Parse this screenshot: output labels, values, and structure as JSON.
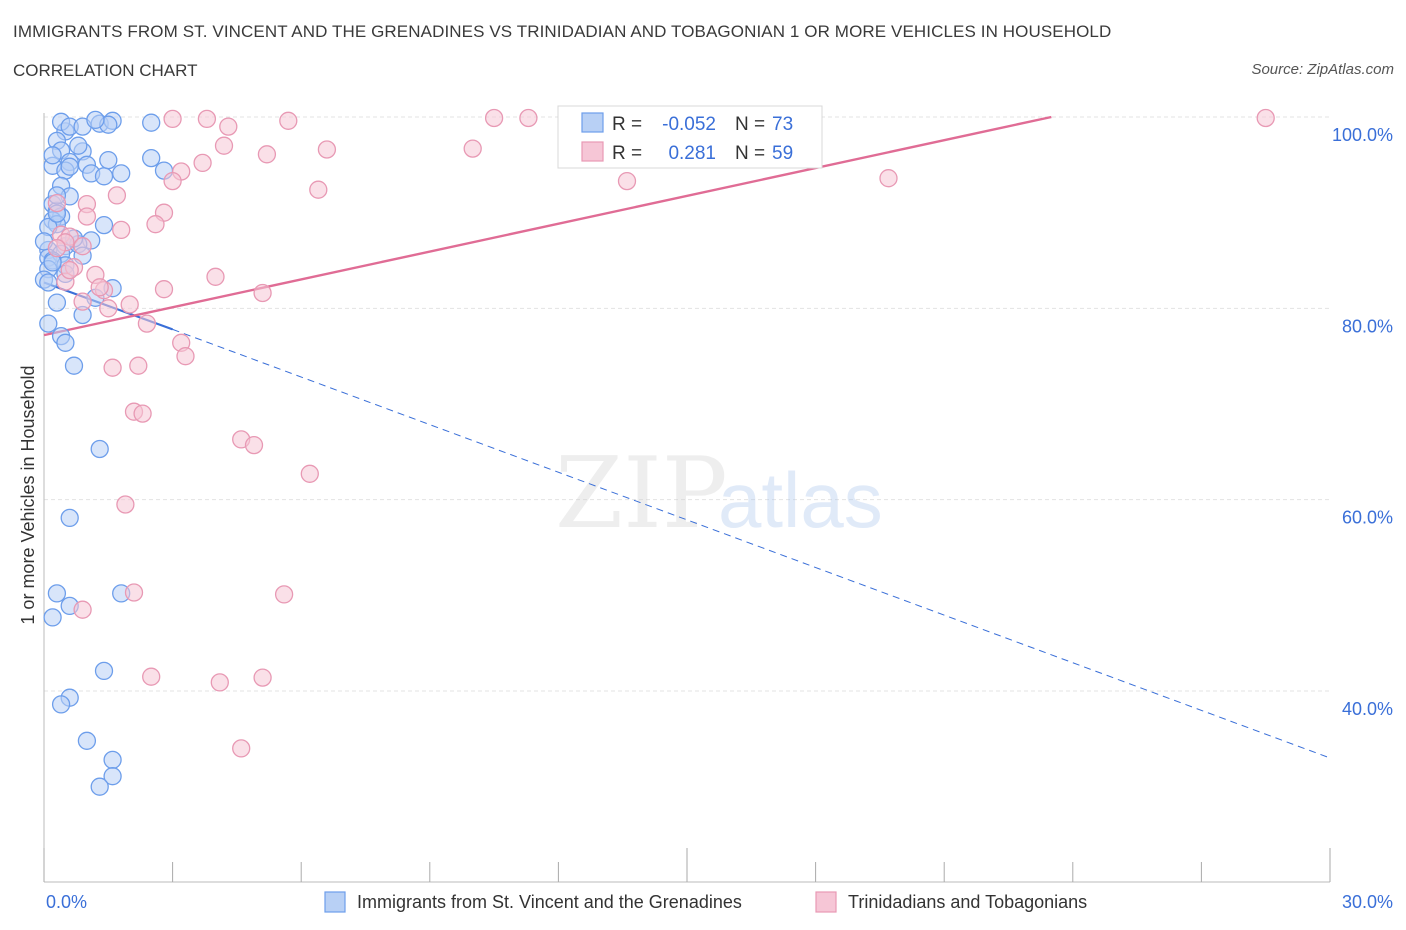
{
  "title": "IMMIGRANTS FROM ST. VINCENT AND THE GRENADINES VS TRINIDADIAN AND TOBAGONIAN 1 OR MORE VEHICLES IN HOUSEHOLD",
  "subtitle": "CORRELATION CHART",
  "source": "Source: ZipAtlas.com",
  "watermark": {
    "zip": "ZIP",
    "atlas": "atlas"
  },
  "colors": {
    "blue": "#6d9eeb",
    "blue_fill": "#b8d0f5",
    "blue_line": "#3a6fd8",
    "pink": "#e899b4",
    "pink_fill": "#f6c6d6",
    "pink_line": "#e06c95",
    "axis_text": "#3a6fd8",
    "grid": "#e3e3e3"
  },
  "stats": {
    "blue": {
      "r_label": "R =",
      "r_value": "-0.052",
      "n_label": "N =",
      "n_value": "73"
    },
    "pink": {
      "r_label": "R =",
      "r_value": "0.281",
      "n_label": "N =",
      "n_value": "59"
    }
  },
  "chart_data": {
    "type": "scatter",
    "title": "IMMIGRANTS FROM ST. VINCENT AND THE GRENADINES VS TRINIDADIAN AND TOBAGONIAN 1 OR MORE VEHICLES IN HOUSEHOLD",
    "xlabel": "",
    "ylabel": "1 or more Vehicles in Household",
    "xlim": [
      0,
      30
    ],
    "ylim": [
      20,
      100
    ],
    "x_ticks": [
      "0.0%",
      "30.0%"
    ],
    "y_ticks": [
      {
        "value": 100,
        "label": "100.0%"
      },
      {
        "value": 80,
        "label": "80.0%"
      },
      {
        "value": 60,
        "label": "60.0%"
      },
      {
        "value": 40,
        "label": "40.0%"
      }
    ],
    "series": [
      {
        "name": "Immigrants from St. Vincent and the Grenadines",
        "color": "#6d9eeb",
        "trend": {
          "x0": 0,
          "y0": 82.7,
          "x1": 3.0,
          "y1": 77.8,
          "dash_to_x": 30,
          "dash_to_y": 33.0
        },
        "points": [
          [
            0.5,
            98.5
          ],
          [
            0.4,
            99.5
          ],
          [
            0.6,
            99.0
          ],
          [
            0.9,
            99.0
          ],
          [
            1.3,
            99.3
          ],
          [
            1.6,
            99.6
          ],
          [
            1.5,
            99.2
          ],
          [
            2.5,
            99.4
          ],
          [
            0.3,
            97.5
          ],
          [
            0.4,
            96.5
          ],
          [
            0.9,
            96.4
          ],
          [
            0.6,
            95.3
          ],
          [
            1.0,
            95.0
          ],
          [
            0.2,
            94.9
          ],
          [
            0.5,
            94.4
          ],
          [
            1.1,
            94.1
          ],
          [
            1.4,
            93.8
          ],
          [
            1.8,
            94.1
          ],
          [
            2.5,
            95.7
          ],
          [
            2.8,
            94.4
          ],
          [
            0.4,
            92.8
          ],
          [
            0.6,
            91.7
          ],
          [
            0.2,
            90.9
          ],
          [
            0.3,
            90.2
          ],
          [
            0.4,
            89.6
          ],
          [
            0.2,
            89.2
          ],
          [
            0.3,
            88.8
          ],
          [
            0.1,
            88.5
          ],
          [
            1.4,
            88.7
          ],
          [
            1.1,
            87.1
          ],
          [
            0.5,
            86.5
          ],
          [
            0.8,
            86.7
          ],
          [
            0.1,
            86.1
          ],
          [
            0.1,
            85.3
          ],
          [
            0.4,
            85.7
          ],
          [
            0.2,
            85.0
          ],
          [
            0.5,
            84.5
          ],
          [
            0.1,
            84.1
          ],
          [
            0.0,
            83.0
          ],
          [
            1.6,
            82.1
          ],
          [
            1.2,
            81.1
          ],
          [
            0.3,
            80.6
          ],
          [
            0.9,
            79.3
          ],
          [
            0.1,
            78.4
          ],
          [
            0.4,
            77.1
          ],
          [
            0.5,
            76.4
          ],
          [
            0.7,
            74.0
          ],
          [
            1.3,
            65.3
          ],
          [
            0.6,
            58.1
          ],
          [
            0.3,
            50.2
          ],
          [
            0.6,
            48.9
          ],
          [
            1.8,
            50.2
          ],
          [
            0.2,
            47.7
          ],
          [
            1.4,
            42.1
          ],
          [
            0.6,
            39.3
          ],
          [
            0.4,
            38.6
          ],
          [
            1.0,
            34.8
          ],
          [
            1.6,
            32.8
          ],
          [
            1.6,
            31.1
          ],
          [
            1.3,
            30.0
          ],
          [
            0.0,
            87.0
          ],
          [
            0.2,
            84.8
          ],
          [
            0.7,
            87.3
          ],
          [
            0.1,
            82.7
          ],
          [
            0.3,
            91.8
          ],
          [
            0.6,
            94.8
          ],
          [
            1.5,
            95.5
          ],
          [
            0.8,
            97.0
          ],
          [
            0.2,
            96.0
          ],
          [
            0.9,
            85.5
          ],
          [
            0.5,
            83.6
          ],
          [
            0.3,
            89.9
          ],
          [
            1.2,
            99.7
          ]
        ]
      },
      {
        "name": "Trinidadians and Tobagonians",
        "color": "#e899b4",
        "trend": {
          "x0": 0,
          "y0": 77.2,
          "x1": 23.5,
          "y1": 100.0
        },
        "points": [
          [
            3.0,
            99.8
          ],
          [
            3.8,
            99.8
          ],
          [
            5.7,
            99.6
          ],
          [
            10.5,
            99.9
          ],
          [
            11.3,
            99.9
          ],
          [
            28.5,
            99.9
          ],
          [
            4.3,
            99.0
          ],
          [
            4.2,
            97.0
          ],
          [
            6.6,
            96.6
          ],
          [
            10.0,
            96.7
          ],
          [
            5.2,
            96.1
          ],
          [
            3.7,
            95.2
          ],
          [
            3.2,
            94.3
          ],
          [
            3.0,
            93.3
          ],
          [
            13.6,
            93.3
          ],
          [
            19.7,
            93.6
          ],
          [
            6.4,
            92.4
          ],
          [
            1.7,
            91.8
          ],
          [
            0.3,
            91.0
          ],
          [
            1.0,
            90.9
          ],
          [
            2.8,
            90.0
          ],
          [
            1.0,
            89.6
          ],
          [
            2.6,
            88.8
          ],
          [
            1.8,
            88.2
          ],
          [
            0.4,
            87.7
          ],
          [
            0.6,
            87.5
          ],
          [
            0.5,
            86.9
          ],
          [
            0.9,
            86.5
          ],
          [
            0.3,
            86.3
          ],
          [
            0.7,
            84.3
          ],
          [
            1.2,
            83.5
          ],
          [
            4.0,
            83.3
          ],
          [
            0.5,
            82.8
          ],
          [
            2.8,
            82.0
          ],
          [
            5.1,
            81.6
          ],
          [
            0.9,
            80.7
          ],
          [
            1.4,
            81.9
          ],
          [
            2.0,
            80.4
          ],
          [
            1.5,
            80.0
          ],
          [
            2.4,
            78.4
          ],
          [
            3.2,
            76.4
          ],
          [
            3.3,
            75.0
          ],
          [
            1.6,
            73.8
          ],
          [
            2.2,
            74.0
          ],
          [
            2.1,
            69.2
          ],
          [
            2.3,
            69.0
          ],
          [
            4.6,
            66.3
          ],
          [
            4.9,
            65.7
          ],
          [
            6.2,
            62.7
          ],
          [
            1.9,
            59.5
          ],
          [
            2.1,
            50.3
          ],
          [
            5.6,
            50.1
          ],
          [
            0.9,
            48.5
          ],
          [
            2.5,
            41.5
          ],
          [
            4.1,
            40.9
          ],
          [
            5.1,
            41.4
          ],
          [
            4.6,
            34.0
          ],
          [
            0.6,
            84.0
          ],
          [
            1.3,
            82.2
          ]
        ]
      }
    ]
  },
  "legend": {
    "items": [
      {
        "label": "Immigrants from St. Vincent and the Grenadines"
      },
      {
        "label": "Trinidadians and Tobagonians"
      }
    ]
  }
}
